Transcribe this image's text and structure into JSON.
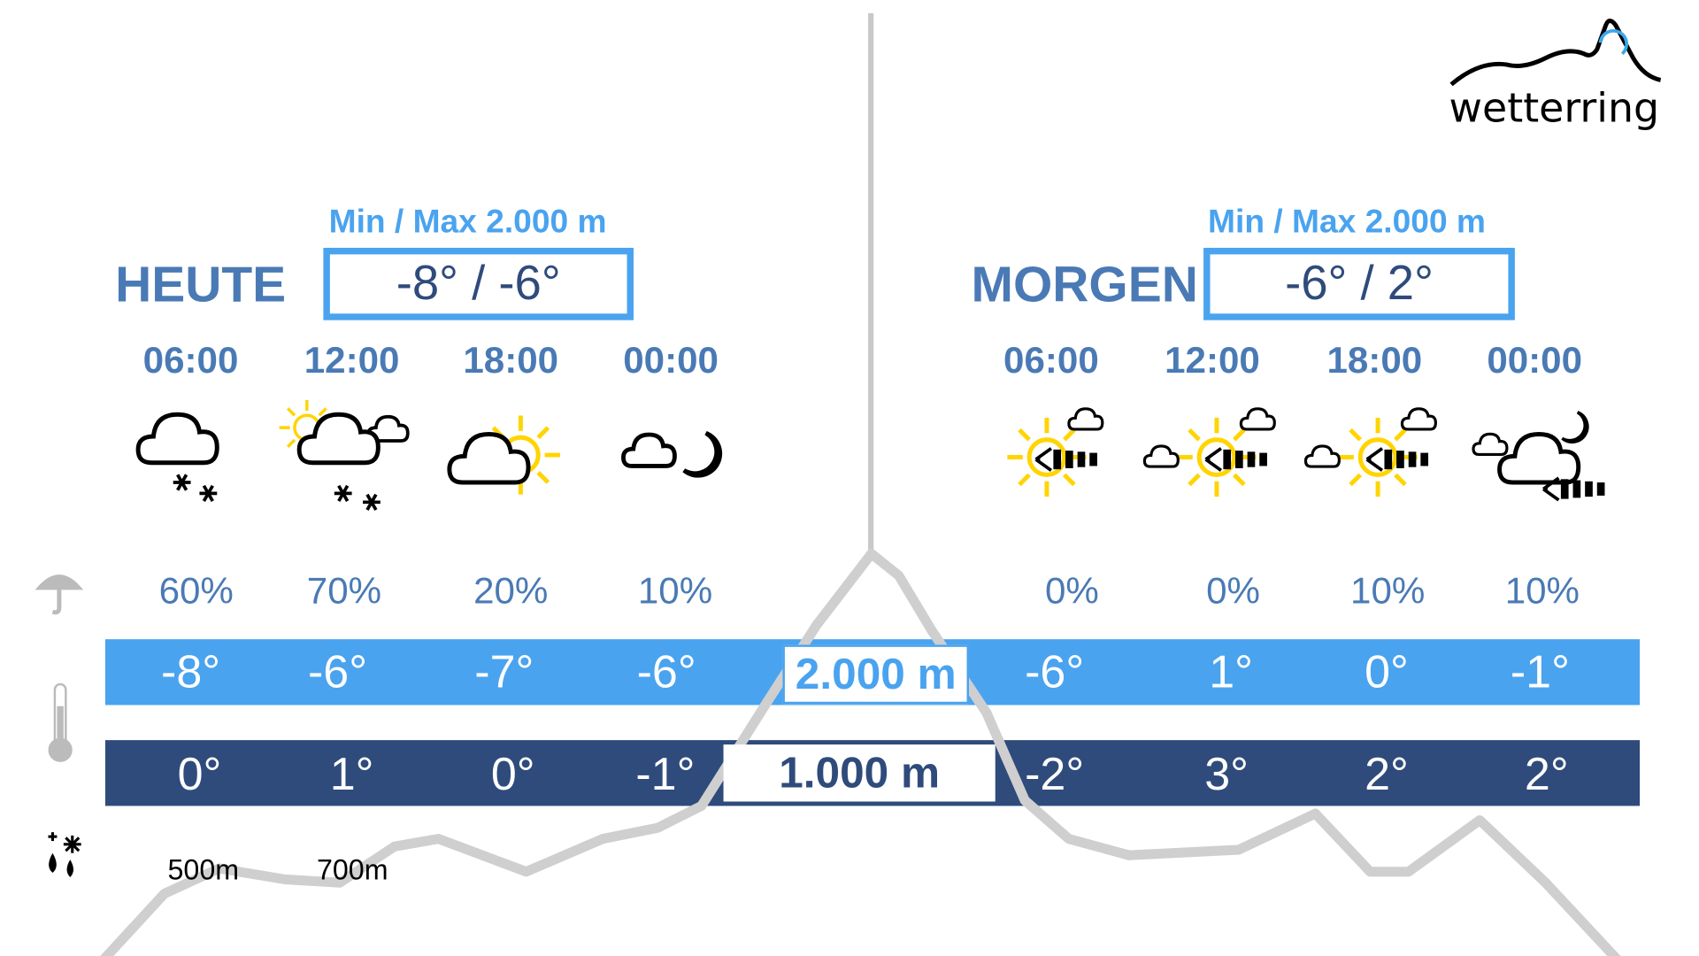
{
  "logo": {
    "text": "wetterring"
  },
  "colors": {
    "accent": "#4aa3ef",
    "dark": "#2f4b7c",
    "text": "#4a7ab5",
    "mountain": "#c8c8c8",
    "sun": "#ffd400"
  },
  "today": {
    "label": "HEUTE",
    "minmax_label": "Min / Max 2.000 m",
    "minmax": "-8° / -6°",
    "times": [
      "06:00",
      "12:00",
      "18:00",
      "00:00"
    ],
    "icons": [
      "cloud-snow-icon",
      "sun-cloud-snow-icon",
      "sun-cloud-icon",
      "moon-cloud-icon"
    ],
    "precip": [
      "60%",
      "70%",
      "20%",
      "10%"
    ],
    "temp_2000": [
      "-8°",
      "-6°",
      "-7°",
      "-6°"
    ],
    "temp_1000": [
      "0°",
      "1°",
      "0°",
      "-1°"
    ],
    "snowline": [
      "500m",
      "700m"
    ]
  },
  "tomorrow": {
    "label": "MORGEN",
    "minmax_label": "Min / Max 2.000 m",
    "minmax": "-6° / 2°",
    "times": [
      "06:00",
      "12:00",
      "18:00",
      "00:00"
    ],
    "icons": [
      "sun-wind-icon",
      "sun-wind-cloud-icon",
      "sun-wind-cloud-icon",
      "moon-cloud-wind-icon"
    ],
    "precip": [
      "0%",
      "0%",
      "10%",
      "10%"
    ],
    "temp_2000": [
      "-6°",
      "1°",
      "0°",
      "-1°"
    ],
    "temp_1000": [
      "-2°",
      "3°",
      "2°",
      "2°"
    ]
  },
  "altitudes": {
    "high": "2.000 m",
    "low": "1.000 m"
  },
  "row_icons": [
    "umbrella-icon",
    "thermometer-icon",
    "snowfall-line-icon"
  ]
}
